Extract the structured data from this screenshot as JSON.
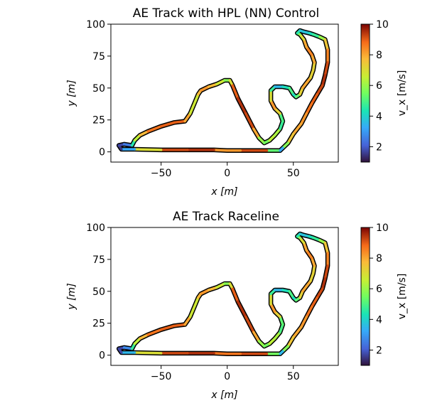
{
  "chart_data": [
    {
      "type": "line",
      "title": "AE Track with HPL (NN) Control",
      "xlabel": "x [m]",
      "ylabel": "y [m]",
      "xlim": [
        -88,
        84
      ],
      "ylim": [
        -8,
        100
      ],
      "xticks": [
        -50,
        0,
        50
      ],
      "yticks": [
        0,
        25,
        50,
        75,
        100
      ],
      "xtick_labels": [
        "−50",
        "0",
        "50"
      ],
      "ytick_labels": [
        "0",
        "25",
        "50",
        "75",
        "100"
      ],
      "colorbar": {
        "label": "v_x [m/s]",
        "colormap": "turbo",
        "range": [
          1,
          10
        ],
        "ticks": [
          2,
          4,
          6,
          8,
          10
        ],
        "tick_labels": [
          "2",
          "4",
          "6",
          "8",
          "10"
        ]
      },
      "series": [
        {
          "x": [
            40,
            30,
            10,
            0,
            -10,
            -30,
            -50,
            -70,
            -80,
            -82,
            -78,
            -72,
            -70,
            -66,
            -60,
            -50,
            -40,
            -32,
            -28,
            -24,
            -22,
            -20,
            -14,
            -8,
            -2,
            2,
            4,
            8,
            14,
            20,
            24,
            28,
            32,
            36,
            40,
            42,
            40,
            36,
            33,
            33,
            36,
            42,
            47,
            50,
            52,
            55,
            57,
            60,
            63,
            65,
            66,
            64,
            60,
            58,
            55,
            53,
            55,
            58,
            62,
            65,
            70,
            74,
            76,
            76,
            74,
            72,
            68,
            64,
            60,
            56,
            50,
            46,
            42,
            40
          ],
          "y": [
            1,
            1,
            1,
            1,
            1.5,
            1.5,
            1.5,
            2,
            2,
            5,
            6,
            5,
            9,
            13,
            16,
            20,
            23,
            24,
            30,
            40,
            45,
            48,
            51,
            53,
            56,
            56,
            52,
            42,
            30,
            18,
            11,
            7,
            9,
            13,
            18,
            24,
            30,
            34,
            40,
            48,
            51,
            51,
            50,
            45,
            43,
            45,
            50,
            54,
            58,
            64,
            70,
            76,
            82,
            88,
            92,
            93,
            95,
            94,
            93,
            92,
            90,
            88,
            80,
            70,
            60,
            52,
            45,
            38,
            30,
            22,
            14,
            7,
            3,
            1
          ],
          "speed": [
            1.5,
            9,
            9.5,
            7,
            9.5,
            9.5,
            9,
            5,
            1.5,
            1.5,
            2,
            3,
            6,
            7,
            8.5,
            9,
            9,
            9,
            7,
            6.5,
            7,
            8.5,
            8,
            7.5,
            6,
            5.5,
            8.5,
            9.5,
            9.5,
            9,
            7,
            5,
            6,
            7,
            5.5,
            4,
            6,
            8.5,
            8,
            6,
            3.5,
            3.5,
            5,
            5,
            3.5,
            7,
            7.5,
            8.5,
            7.5,
            7,
            7.5,
            8.5,
            8.5,
            7.5,
            6.5,
            5,
            4,
            3.5,
            4,
            4.5,
            5,
            7,
            8,
            9,
            9.5,
            9.5,
            9,
            9,
            8.5,
            8,
            8,
            7,
            4.5,
            2
          ]
        }
      ]
    },
    {
      "type": "line",
      "title": "AE Track Raceline",
      "xlabel": "x [m]",
      "ylabel": "y [m]",
      "xlim": [
        -88,
        84
      ],
      "ylim": [
        -8,
        100
      ],
      "xticks": [
        -50,
        0,
        50
      ],
      "yticks": [
        0,
        25,
        50,
        75,
        100
      ],
      "xtick_labels": [
        "−50",
        "0",
        "50"
      ],
      "ytick_labels": [
        "0",
        "25",
        "50",
        "75",
        "100"
      ],
      "colorbar": {
        "label": "v_x [m/s]",
        "colormap": "turbo",
        "range": [
          1,
          10
        ],
        "ticks": [
          2,
          4,
          6,
          8,
          10
        ],
        "tick_labels": [
          "2",
          "4",
          "6",
          "8",
          "10"
        ]
      },
      "series": [
        {
          "x": [
            40,
            30,
            10,
            0,
            -10,
            -30,
            -50,
            -70,
            -80,
            -82,
            -78,
            -72,
            -70,
            -66,
            -60,
            -50,
            -40,
            -32,
            -28,
            -24,
            -22,
            -20,
            -14,
            -8,
            -2,
            2,
            4,
            8,
            14,
            20,
            24,
            28,
            32,
            36,
            40,
            42,
            40,
            36,
            33,
            33,
            36,
            42,
            47,
            50,
            52,
            55,
            57,
            60,
            63,
            65,
            66,
            64,
            60,
            58,
            55,
            53,
            55,
            58,
            62,
            65,
            70,
            74,
            76,
            76,
            74,
            72,
            68,
            64,
            60,
            56,
            50,
            46,
            42,
            40
          ],
          "y": [
            1,
            1,
            1,
            1,
            1.5,
            1.5,
            1.5,
            2,
            2,
            5,
            6,
            5,
            9,
            13,
            16,
            20,
            23,
            24,
            30,
            40,
            45,
            48,
            51,
            53,
            56,
            56,
            52,
            42,
            30,
            18,
            11,
            7,
            9,
            13,
            18,
            24,
            30,
            34,
            40,
            48,
            51,
            51,
            50,
            45,
            43,
            45,
            50,
            54,
            58,
            64,
            70,
            76,
            82,
            88,
            92,
            93,
            95,
            94,
            93,
            92,
            90,
            88,
            80,
            70,
            60,
            52,
            45,
            38,
            30,
            22,
            14,
            7,
            3,
            1
          ],
          "speed": [
            2,
            9,
            9.5,
            8,
            9.5,
            9.5,
            9,
            5,
            2,
            1.5,
            2,
            3.5,
            6,
            7,
            8.5,
            9,
            9,
            9,
            7,
            6.5,
            7,
            8.5,
            8,
            7.5,
            6,
            5.5,
            8.5,
            9.5,
            9.5,
            9,
            7,
            5,
            6,
            7,
            5.5,
            4.5,
            6,
            8.5,
            8,
            6,
            3.5,
            3.5,
            5,
            5,
            3.5,
            7,
            7.5,
            8.5,
            7.5,
            7,
            7.5,
            8.5,
            8.5,
            7.5,
            6.5,
            5,
            4,
            3.5,
            4,
            4.5,
            5,
            7,
            8,
            9,
            9.5,
            9.5,
            9,
            9,
            8.5,
            8,
            8,
            7,
            4.5,
            2.5
          ]
        }
      ]
    }
  ]
}
